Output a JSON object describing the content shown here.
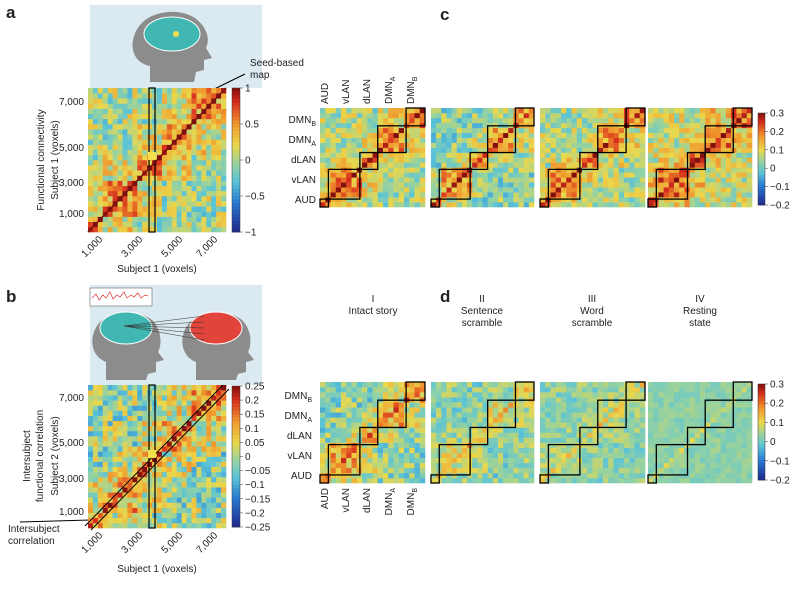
{
  "a": {
    "label": "a",
    "y_title": "Functional connectivity",
    "y_label": "Subject 1 (voxels)",
    "x_label": "Subject 1 (voxels)",
    "annotation": [
      "Seed-based",
      "map"
    ],
    "x_ticks": [
      "1,000",
      "3,000",
      "5,000",
      "7,000"
    ],
    "y_ticks": [
      "7,000",
      "5,000",
      "3,000",
      "1,000"
    ],
    "colorbar_ticks": [
      "1",
      "0.5",
      "0",
      "−0.5",
      "−1"
    ]
  },
  "b": {
    "label": "b",
    "y_title": [
      "Intersubject",
      "functional correlation"
    ],
    "y_label": "Subject 2 (voxels)",
    "x_label": "Subject 1 (voxels)",
    "annotation": [
      "Intersubject",
      "correlation"
    ],
    "x_ticks": [
      "1,000",
      "3,000",
      "5,000",
      "7,000"
    ],
    "y_ticks": [
      "7,000",
      "5,000",
      "3,000",
      "1,000"
    ],
    "colorbar_ticks": [
      "0.25",
      "0.2",
      "0.15",
      "0.1",
      "0.05",
      "0",
      "−0.05",
      "−0.1",
      "−0.15",
      "−0.2",
      "−0.25"
    ]
  },
  "c": {
    "label": "c",
    "networks": [
      {
        "main": "AUD",
        "sub": ""
      },
      {
        "main": "vLAN",
        "sub": ""
      },
      {
        "main": "dLAN",
        "sub": ""
      },
      {
        "main": "DMN",
        "sub": "A"
      },
      {
        "main": "DMN",
        "sub": "B"
      }
    ],
    "colorbar_ticks": [
      "0.3",
      "0.2",
      "0.1",
      "0",
      "−0.1",
      "−0.2"
    ]
  },
  "d": {
    "label": "d",
    "conditions": [
      {
        "numeral": "I",
        "name": "Intact story"
      },
      {
        "numeral": "II",
        "name": "Sentence scramble"
      },
      {
        "numeral": "III",
        "name": "Word scramble"
      },
      {
        "numeral": "IV",
        "name": "Resting state"
      }
    ],
    "networks": [
      {
        "main": "AUD",
        "sub": ""
      },
      {
        "main": "vLAN",
        "sub": ""
      },
      {
        "main": "dLAN",
        "sub": ""
      },
      {
        "main": "DMN",
        "sub": "A"
      },
      {
        "main": "DMN",
        "sub": "B"
      }
    ],
    "colorbar_ticks": [
      "0.3",
      "0.2",
      "0.1",
      "0",
      "−0.1",
      "−0.2"
    ]
  }
}
